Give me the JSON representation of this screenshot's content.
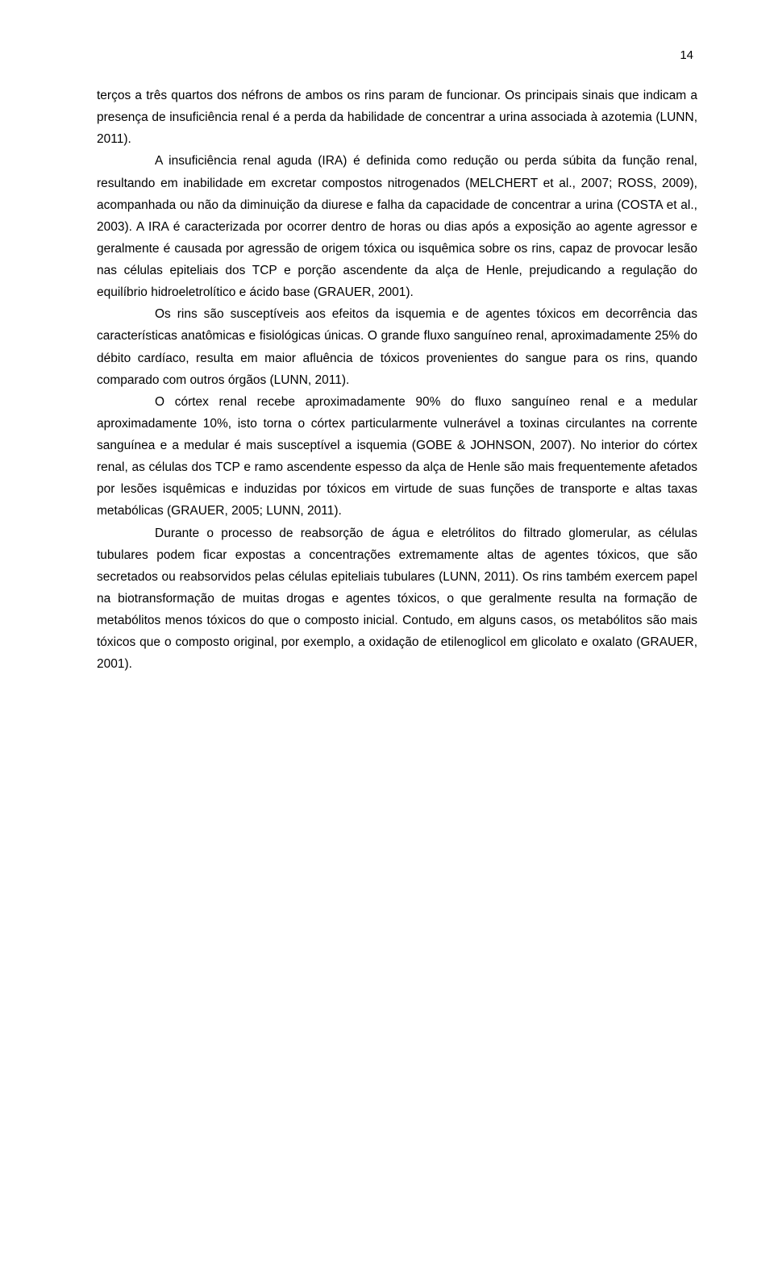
{
  "page_number": "14",
  "text_color": "#000000",
  "background_color": "#ffffff",
  "font_family": "Arial",
  "font_size_pt": 12,
  "line_height": 1.75,
  "paragraphs": [
    {
      "indent": false,
      "text": "terços a três quartos dos néfrons de ambos os rins param de funcionar. Os principais sinais que indicam a presença de insuficiência renal é a perda da habilidade de concentrar a urina associada à azotemia (LUNN, 2011)."
    },
    {
      "indent": true,
      "text": "A insuficiência renal aguda (IRA) é definida como redução ou perda súbita da função renal, resultando em inabilidade em excretar compostos nitrogenados (MELCHERT et al., 2007; ROSS, 2009), acompanhada ou não da diminuição da diurese e falha da capacidade de concentrar a urina (COSTA et al., 2003). A IRA é caracterizada por ocorrer dentro de horas ou dias após a exposição ao agente agressor e geralmente é causada por agressão de origem tóxica ou isquêmica sobre os rins, capaz de provocar lesão nas células epiteliais dos TCP e porção ascendente da alça de Henle, prejudicando a regulação do equilíbrio hidroeletrolítico e ácido base (GRAUER, 2001)."
    },
    {
      "indent": true,
      "text": "Os rins são susceptíveis aos efeitos da isquemia e de agentes tóxicos em decorrência das características anatômicas e fisiológicas únicas. O grande fluxo sanguíneo renal, aproximadamente 25% do débito cardíaco, resulta em maior afluência de tóxicos provenientes do sangue para os rins, quando comparado com outros órgãos (LUNN, 2011)."
    },
    {
      "indent": true,
      "text": "O córtex renal recebe aproximadamente 90% do fluxo sanguíneo renal e a medular aproximadamente 10%, isto torna o córtex particularmente vulnerável a toxinas circulantes na corrente sanguínea e a medular é mais susceptível a isquemia (GOBE & JOHNSON, 2007). No interior do córtex renal, as células dos TCP e ramo ascendente espesso da alça de Henle são mais frequentemente afetados por lesões isquêmicas e induzidas por tóxicos em virtude de suas funções de transporte e altas taxas metabólicas (GRAUER, 2005; LUNN, 2011)."
    },
    {
      "indent": true,
      "text": "Durante o processo de reabsorção de água e eletrólitos do filtrado glomerular, as células tubulares podem ficar expostas a concentrações extremamente altas de agentes tóxicos, que são secretados ou reabsorvidos pelas células epiteliais tubulares (LUNN, 2011). Os rins também exercem papel na biotransformação de muitas drogas e agentes tóxicos, o que geralmente resulta na formação de metabólitos menos tóxicos do que o composto inicial. Contudo, em alguns casos, os metabólitos são mais tóxicos que o composto original, por exemplo, a oxidação de etilenoglicol em glicolato e oxalato (GRAUER, 2001)."
    }
  ]
}
